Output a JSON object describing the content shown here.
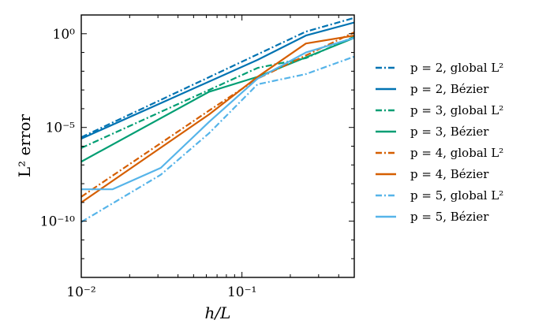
{
  "chart_data": {
    "type": "line",
    "title": "",
    "xlabel": "h/L",
    "ylabel": "L² error",
    "xscale": "log",
    "yscale": "log",
    "xlim": [
      0.01,
      0.5
    ],
    "ylim": [
      1e-13,
      10.0
    ],
    "x_ticks": [
      {
        "value": 0.01,
        "label": "10⁻²"
      },
      {
        "value": 0.1,
        "label": "10⁻¹"
      }
    ],
    "y_ticks": [
      {
        "value": 1,
        "label": "10⁰"
      },
      {
        "value": 1e-05,
        "label": "10⁻⁵"
      },
      {
        "value": 1e-10,
        "label": "10⁻¹⁰"
      }
    ],
    "legend_position": "right-outside",
    "series": [
      {
        "name": "p = 2, global L²",
        "color": "#0173b2",
        "dash": "dashdot",
        "x": [
          0.01,
          0.25,
          0.5
        ],
        "y": [
          3e-06,
          1.3,
          7
        ]
      },
      {
        "name": "p = 2, Bézier",
        "color": "#0173b2",
        "dash": "solid",
        "x": [
          0.01,
          0.125,
          0.25,
          0.5
        ],
        "y": [
          2.5e-06,
          0.04,
          0.8,
          4
        ]
      },
      {
        "name": "p = 3, global L²",
        "color": "#029e73",
        "dash": "dashdot",
        "x": [
          0.01,
          0.125,
          0.25,
          0.5
        ],
        "y": [
          8e-07,
          0.015,
          0.05,
          0.7
        ]
      },
      {
        "name": "p = 3, Bézier",
        "color": "#029e73",
        "dash": "solid",
        "x": [
          0.01,
          0.0625,
          0.125,
          0.5
        ],
        "y": [
          1.5e-07,
          0.0008,
          0.005,
          0.6
        ]
      },
      {
        "name": "p = 4, global L²",
        "color": "#d55e00",
        "dash": "dashdot",
        "x": [
          0.01,
          0.0625,
          0.125,
          0.5
        ],
        "y": [
          2e-09,
          8e-05,
          0.004,
          1.2
        ]
      },
      {
        "name": "p = 4, Bézier",
        "color": "#d55e00",
        "dash": "solid",
        "x": [
          0.01,
          0.0625,
          0.125,
          0.25,
          0.5
        ],
        "y": [
          1e-09,
          5e-05,
          0.005,
          0.3,
          0.8
        ]
      },
      {
        "name": "p = 5, global L²",
        "color": "#56b4e9",
        "dash": "dashdot",
        "x": [
          0.01,
          0.03125,
          0.0625,
          0.125,
          0.25,
          0.5
        ],
        "y": [
          9e-11,
          3e-08,
          5e-06,
          0.002,
          0.007,
          0.06
        ]
      },
      {
        "name": "p = 5, Bézier",
        "color": "#56b4e9",
        "dash": "solid",
        "x": [
          0.01,
          0.015625,
          0.03125,
          0.0625,
          0.125,
          0.25,
          0.5
        ],
        "y": [
          5e-09,
          5e-09,
          7e-08,
          2e-05,
          0.004,
          0.1,
          0.6
        ]
      }
    ]
  }
}
